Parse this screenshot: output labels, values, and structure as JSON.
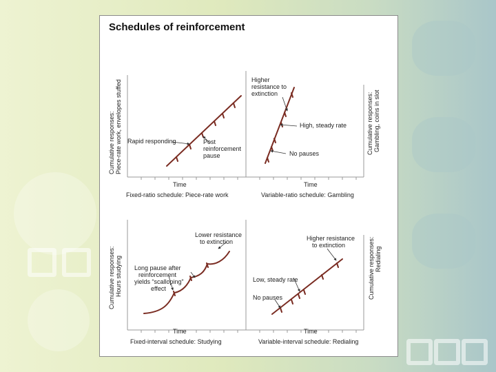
{
  "title": "Schedules of reinforcement",
  "panels": {
    "fixed_ratio": {
      "ylabel_1": "Cumulative responses:",
      "ylabel_2": "Piece-rate work, envelopes stuffed",
      "xlabel": "Time",
      "caption": "Fixed-ratio schedule: Piece-rate work",
      "annotations": [
        "Rapid responding",
        "Post",
        "reinforcement",
        "pause"
      ]
    },
    "variable_ratio": {
      "ylabel_1": "Cumulative responses:",
      "ylabel_2": "Gambling, coins in slot",
      "xlabel": "Time",
      "caption": "Variable-ratio schedule: Gambling",
      "annotations": [
        "Higher",
        "resistance to",
        "extinction",
        "High, steady rate",
        "No pauses"
      ]
    },
    "fixed_interval": {
      "ylabel_1": "Cumulative responses:",
      "ylabel_2": "Hours studying",
      "xlabel": "Time",
      "caption": "Fixed-interval schedule: Studying",
      "annotations": [
        "Lower resistance",
        "to extinction",
        "Long pause after",
        "reinforcement",
        "yields “scalloping”",
        "effect"
      ]
    },
    "variable_interval": {
      "ylabel_1": "Cumulative responses:",
      "ylabel_2": "Redialing",
      "xlabel": "Time",
      "caption": "Variable-interval schedule: Redialing",
      "annotations": [
        "Higher resistance",
        "to extinction",
        "Low, steady rate",
        "No pauses"
      ]
    }
  },
  "colors": {
    "curve": "#7a2c22",
    "axis": "#9a9a9a",
    "arrow": "#333333"
  }
}
